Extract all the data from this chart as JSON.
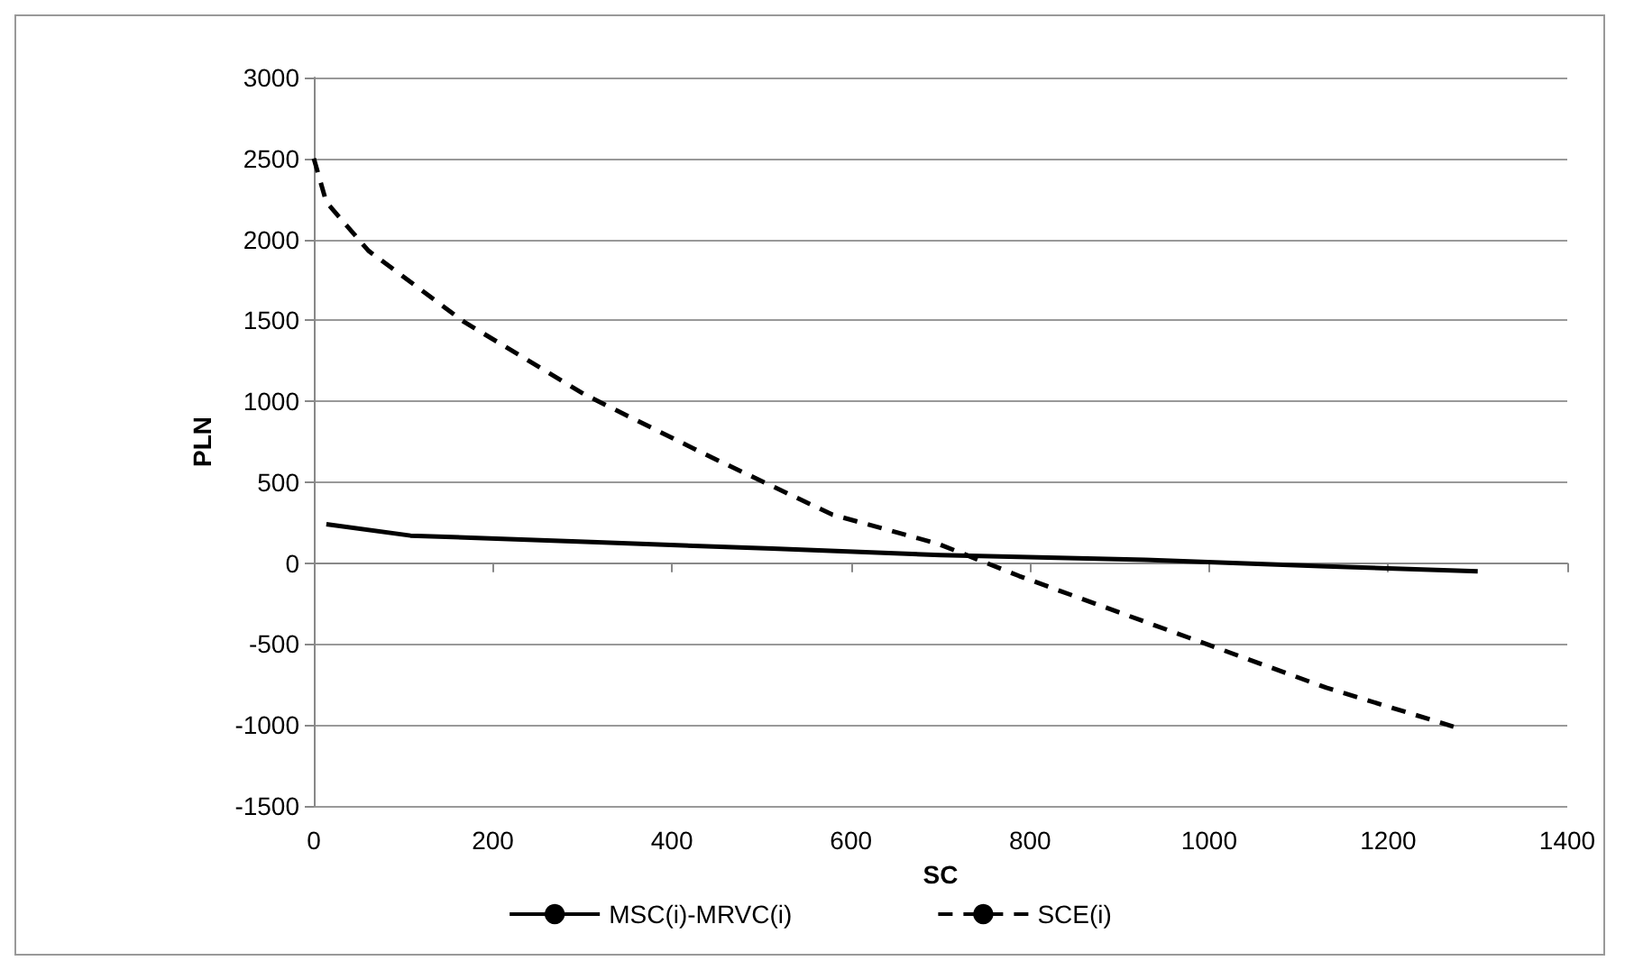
{
  "chart_data": {
    "type": "line",
    "xlabel": "SC",
    "ylabel": "PLN",
    "xlim": [
      0,
      1400
    ],
    "xticks": [
      0,
      200,
      400,
      600,
      800,
      1000,
      1200,
      1400
    ],
    "ylim": [
      -1500,
      3000
    ],
    "yticks": [
      -1500,
      -1000,
      -500,
      0,
      500,
      1000,
      1500,
      2000,
      2500,
      3000
    ],
    "grid": "y",
    "legend": "bottom",
    "marker": "none",
    "series": [
      {
        "name": "MSC(i)-MRVC(i)",
        "color": "#000000",
        "line_style": "solid",
        "x": [
          14,
          108,
          310,
          512,
          700,
          929,
          1131,
          1300
        ],
        "values": [
          240,
          170,
          130,
          90,
          50,
          20,
          -20,
          -50
        ]
      },
      {
        "name": "SCE(i)",
        "color": "#000000",
        "line_style": "dashed",
        "x": [
          0,
          14,
          61,
          168,
          303,
          438,
          579,
          697,
          788,
          977,
          1131,
          1273
        ],
        "values": [
          2500,
          2230,
          1930,
          1490,
          1040,
          670,
          300,
          120,
          -80,
          -460,
          -770,
          -1010
        ]
      }
    ]
  }
}
